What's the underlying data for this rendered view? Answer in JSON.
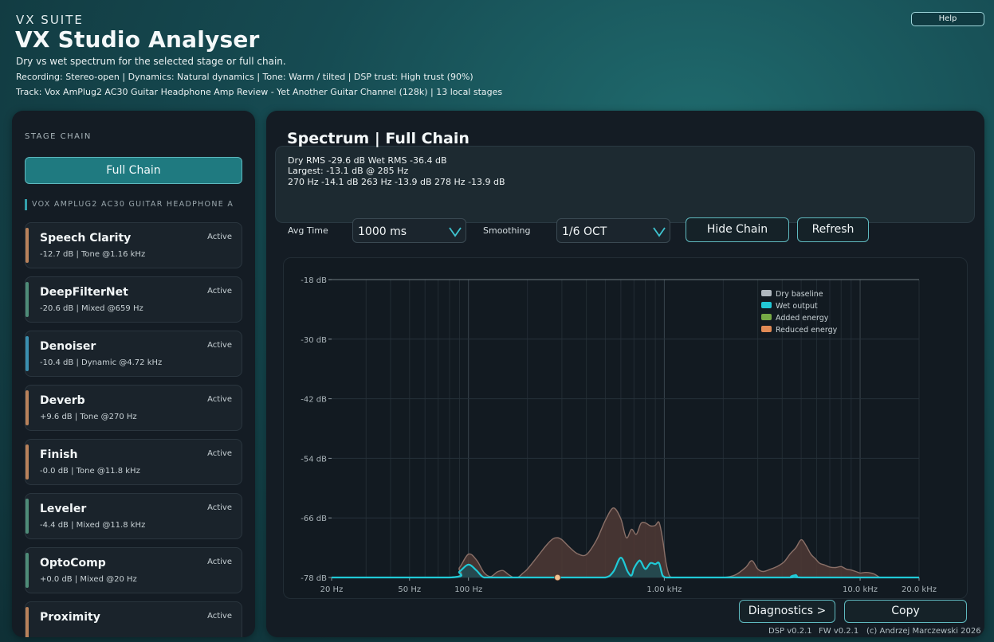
{
  "header": {
    "brand": "VX SUITE",
    "title": "VX Studio Analyser",
    "subtitle": "Dry vs wet spectrum for the selected stage or full chain.",
    "recording_line": "Recording: Stereo-open  |  Dynamics: Natural dynamics  |  Tone: Warm / tilted  |  DSP trust: High trust (90%)",
    "track_line": "Track: Vox AmPlug2 AC30 Guitar Headphone Amp Review - Yet Another Guitar Channel (128k)   |   13 local stages",
    "help_label": "Help"
  },
  "sidebar": {
    "title": "STAGE CHAIN",
    "full_chain_label": "Full Chain",
    "track_header": "VOX AMPLUG2 AC30 GUITAR HEADPHONE A",
    "stages": [
      {
        "name": "Speech Clarity",
        "detail": "-12.7 dB  |  Tone  @1.16 kHz",
        "status": "Active",
        "color": "#b9815a"
      },
      {
        "name": "DeepFilterNet",
        "detail": "-20.6 dB  |  Mixed  @659 Hz",
        "status": "Active",
        "color": "#4e8c78"
      },
      {
        "name": "Denoiser",
        "detail": "-10.4 dB  |  Dynamic  @4.72 kHz",
        "status": "Active",
        "color": "#3a8fb0"
      },
      {
        "name": "Deverb",
        "detail": "+9.6 dB  |  Tone  @270 Hz",
        "status": "Active",
        "color": "#b9815a"
      },
      {
        "name": "Finish",
        "detail": "-0.0 dB  |  Tone  @11.8 kHz",
        "status": "Active",
        "color": "#b9815a"
      },
      {
        "name": "Leveler",
        "detail": "-4.4 dB  |  Mixed  @11.8 kHz",
        "status": "Active",
        "color": "#4e8c78"
      },
      {
        "name": "OptoComp",
        "detail": "+0.0 dB  |  Mixed  @20 Hz",
        "status": "Active",
        "color": "#4e8c78"
      },
      {
        "name": "Proximity",
        "detail": "",
        "status": "Active",
        "color": "#b9815a"
      }
    ]
  },
  "main": {
    "title": "Spectrum  |  Full Chain",
    "stats": [
      "Dry RMS -29.6 dB   Wet RMS -36.4 dB",
      "Largest: -13.1 dB @ 285 Hz",
      "270 Hz -14.1 dB   263 Hz -13.9 dB   278 Hz -13.9 dB"
    ],
    "avg_time_label": "Avg Time",
    "avg_time_value": "1000 ms",
    "smoothing_label": "Smoothing",
    "smoothing_value": "1/6 OCT",
    "hide_chain_label": "Hide Chain",
    "refresh_label": "Refresh",
    "diagnostics_label": "Diagnostics >",
    "copy_label": "Copy"
  },
  "footer": {
    "dsp": "DSP v0.2.1",
    "fw": "FW v0.2.1",
    "copyright": "(c) Andrzej Marczewski 2026"
  },
  "chart_data": {
    "type": "area",
    "x_scale": "log",
    "xlim": [
      20,
      20000
    ],
    "ylim": [
      -78,
      -18
    ],
    "grid": true,
    "legend_position": "top-right",
    "y_ticks": [
      -18,
      -30,
      -42,
      -54,
      -66,
      -78
    ],
    "y_tick_labels": [
      "-18 dB",
      "-30 dB",
      "-42 dB",
      "-54 dB",
      "-66 dB",
      "-78 dB"
    ],
    "x_ticks": [
      20,
      50,
      100,
      1000,
      10000,
      20000
    ],
    "x_tick_labels": [
      "20 Hz",
      "50 Hz",
      "100 Hz",
      "1.00 kHz",
      "10.0 kHz",
      "20.0 kHz"
    ],
    "colors": {
      "dry": "#8a7068",
      "dry_fill": "#4f3a35",
      "wet": "#20c9d6",
      "wet_fill": "#1d4d55",
      "marker": "#f0c090",
      "legend_dry": "#b0b8bf",
      "legend_wet": "#22c8d6",
      "legend_added": "#76a845",
      "legend_reduced": "#e08a55"
    },
    "series": [
      {
        "name": "Dry baseline",
        "x": [
          20,
          80,
          90,
          100,
          110,
          120,
          130,
          140,
          150,
          160,
          170,
          180,
          190,
          200,
          225,
          250,
          270,
          285,
          300,
          330,
          360,
          400,
          450,
          500,
          550,
          600,
          640,
          680,
          720,
          760,
          800,
          850,
          900,
          940,
          980,
          1020,
          1060,
          1100,
          1150,
          1200,
          1300,
          1400,
          1500,
          1700,
          2000,
          2300,
          2600,
          2800,
          3000,
          3200,
          3500,
          3800,
          4100,
          4400,
          4700,
          5000,
          5300,
          5600,
          5900,
          6200,
          6600,
          7000,
          7500,
          8000,
          8500,
          9000,
          9500,
          10000,
          10500,
          11000,
          11800,
          12500,
          13200,
          14000,
          15000,
          16000,
          17000,
          20000
        ],
        "values": [
          -78,
          -78,
          -76,
          -73.3,
          -74.5,
          -77,
          -77.8,
          -76.9,
          -76.6,
          -77.4,
          -78,
          -77.9,
          -77.1,
          -76.3,
          -73.8,
          -71.5,
          -70.2,
          -70.0,
          -70.4,
          -72.0,
          -73.2,
          -73.4,
          -70.5,
          -66.5,
          -64.0,
          -66.2,
          -70.0,
          -68.3,
          -69.3,
          -67.1,
          -67.0,
          -67.6,
          -67.5,
          -66.9,
          -70.2,
          -75.0,
          -77.6,
          -78,
          -78,
          -78,
          -78,
          -78,
          -78,
          -78,
          -78,
          -77.5,
          -76.0,
          -74.6,
          -76.3,
          -76.8,
          -76.3,
          -75.7,
          -74.8,
          -73.2,
          -72.0,
          -70.4,
          -71.6,
          -73.3,
          -74.2,
          -75.1,
          -75.5,
          -75.9,
          -76.0,
          -75.8,
          -76.3,
          -76.5,
          -76.8,
          -77.1,
          -77.0,
          -77.0,
          -77.3,
          -77.9,
          -78,
          -78,
          -78,
          -78,
          -78,
          -78
        ]
      },
      {
        "name": "Wet output",
        "x": [
          20,
          80,
          90,
          100,
          110,
          120,
          140,
          200,
          270,
          285,
          300,
          400,
          500,
          550,
          600,
          650,
          680,
          700,
          740,
          760,
          800,
          850,
          900,
          940,
          980,
          1020,
          1060,
          1100,
          1200,
          2000,
          4400,
          4700,
          5000,
          20000
        ],
        "values": [
          -78,
          -78,
          -76.8,
          -75.4,
          -76.6,
          -78,
          -78,
          -78,
          -78,
          -78,
          -78,
          -78,
          -78,
          -76.8,
          -74.0,
          -76.8,
          -77.6,
          -76.2,
          -74.7,
          -74.8,
          -76.3,
          -75.1,
          -75.3,
          -75.1,
          -77.6,
          -78,
          -78,
          -78,
          -78,
          -78,
          -78,
          -77.5,
          -78,
          -78
        ]
      }
    ],
    "legend_entries": [
      "Dry baseline",
      "Wet output",
      "Added energy",
      "Reduced energy"
    ],
    "markers": [
      {
        "x": 285,
        "y": -78
      }
    ]
  }
}
